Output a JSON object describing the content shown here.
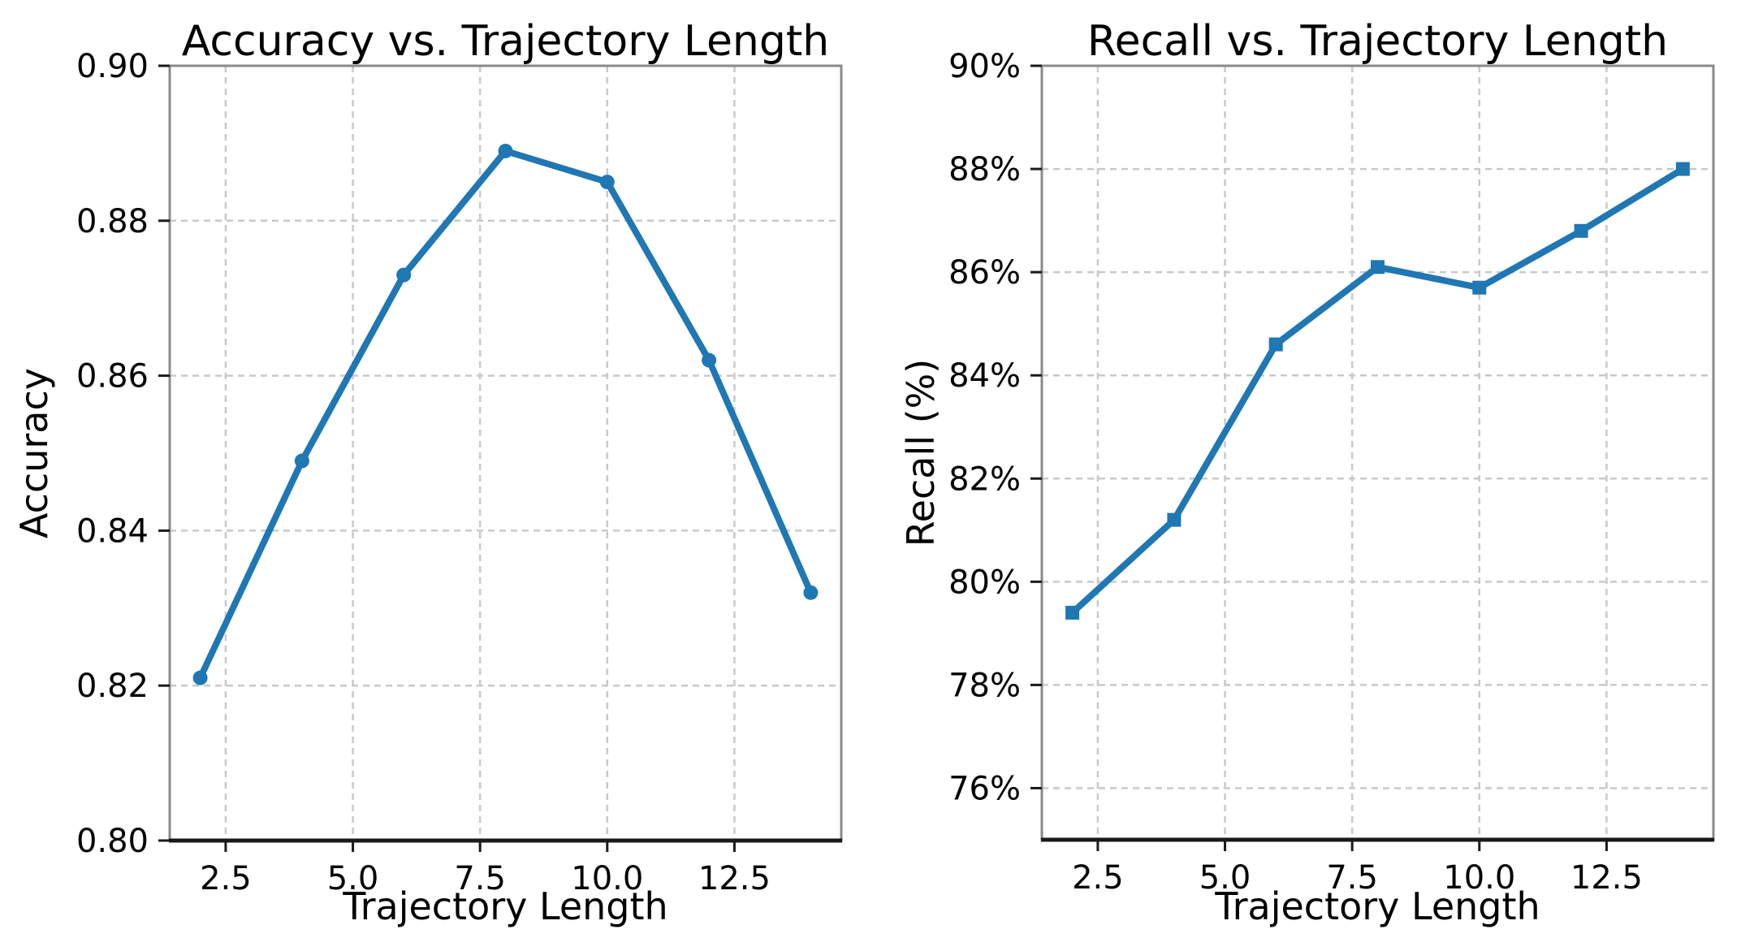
{
  "figure": {
    "background_color": "#ffffff",
    "accent_color": "#1f77b4",
    "grid_color": "#c9c9c9"
  },
  "chart_data": [
    {
      "id": "accuracy",
      "type": "line",
      "title": "Accuracy vs. Trajectory Length",
      "xlabel": "Trajectory Length",
      "ylabel": "Accuracy",
      "x": [
        2,
        4,
        6,
        8,
        10,
        12,
        14
      ],
      "y": [
        0.821,
        0.849,
        0.873,
        0.889,
        0.885,
        0.862,
        0.832
      ],
      "xlim": [
        1.4,
        14.6
      ],
      "ylim": [
        0.8,
        0.9
      ],
      "xticks": [
        2.5,
        5.0,
        7.5,
        10.0,
        12.5
      ],
      "xtick_labels": [
        "2.5",
        "5.0",
        "7.5",
        "10.0",
        "12.5"
      ],
      "yticks": [
        0.8,
        0.82,
        0.84,
        0.86,
        0.88,
        0.9
      ],
      "ytick_labels": [
        "0.80",
        "0.82",
        "0.84",
        "0.86",
        "0.88",
        "0.90"
      ],
      "grid": true,
      "legend": "none",
      "marker": "circle",
      "line_color": "#1f77b4"
    },
    {
      "id": "recall",
      "type": "line",
      "title": "Recall vs. Trajectory Length",
      "xlabel": "Trajectory Length",
      "ylabel": "Recall (%)",
      "x": [
        2,
        4,
        6,
        8,
        10,
        12,
        14
      ],
      "y": [
        79.4,
        81.2,
        84.6,
        86.1,
        85.7,
        86.8,
        88.0
      ],
      "xlim": [
        1.4,
        14.6
      ],
      "ylim": [
        75.0,
        90.0
      ],
      "xticks": [
        2.5,
        5.0,
        7.5,
        10.0,
        12.5
      ],
      "xtick_labels": [
        "2.5",
        "5.0",
        "7.5",
        "10.0",
        "12.5"
      ],
      "yticks": [
        76,
        78,
        80,
        82,
        84,
        86,
        88,
        90
      ],
      "ytick_labels": [
        "76%",
        "78%",
        "80%",
        "82%",
        "84%",
        "86%",
        "88%",
        "90%"
      ],
      "grid": true,
      "legend": "none",
      "marker": "square",
      "line_color": "#1f77b4"
    }
  ]
}
